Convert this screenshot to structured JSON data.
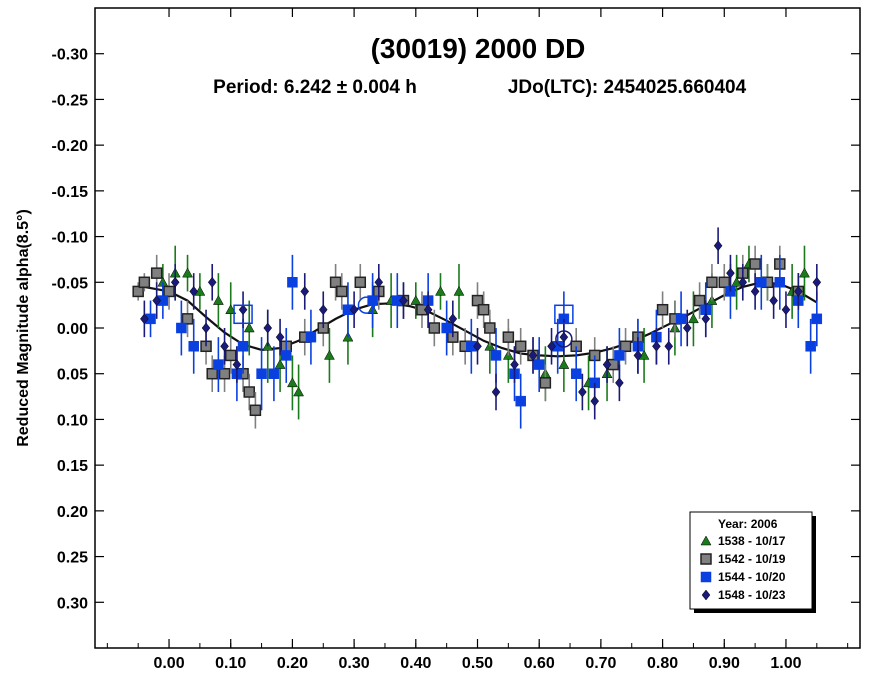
{
  "chart_data": {
    "type": "scatter",
    "title": "(30019) 2000 DD",
    "subtitle_period": "Period: 6.242 ± 0.004 h",
    "subtitle_epoch": "JDo(LTC): 2454025.660404",
    "xlabel": "",
    "ylabel": "Reduced Magnitude alpha(8.5°)",
    "xlim": [
      -0.12,
      1.12
    ],
    "ylim": [
      -0.35,
      0.35
    ],
    "y_inverted": true,
    "x_ticks": [
      "0.00",
      "0.10",
      "0.20",
      "0.30",
      "0.40",
      "0.50",
      "0.60",
      "0.70",
      "0.80",
      "0.90",
      "1.00"
    ],
    "y_ticks": [
      "-0.30",
      "-0.25",
      "-0.20",
      "-0.15",
      "-0.10",
      "-0.05",
      "0.00",
      "0.05",
      "0.10",
      "0.15",
      "0.20",
      "0.25",
      "0.30"
    ],
    "legend_title": "Year: 2006",
    "legend_position": "bottom-right",
    "series": [
      {
        "name": "1538 - 10/17",
        "marker": "triangle",
        "color": "#1b7a1b",
        "points": [
          [
            -0.01,
            -0.05,
            0.02
          ],
          [
            0.01,
            -0.06,
            0.03
          ],
          [
            0.03,
            -0.06,
            0.02
          ],
          [
            0.05,
            -0.04,
            0.02
          ],
          [
            0.08,
            -0.03,
            0.03
          ],
          [
            0.1,
            -0.02,
            0.03
          ],
          [
            0.13,
            0.0,
            0.03
          ],
          [
            0.16,
            0.02,
            0.04
          ],
          [
            0.18,
            0.04,
            0.03
          ],
          [
            0.2,
            0.06,
            0.03
          ],
          [
            0.21,
            0.07,
            0.03
          ],
          [
            0.26,
            0.03,
            0.03
          ],
          [
            0.29,
            0.01,
            0.03
          ],
          [
            0.33,
            -0.02,
            0.03
          ],
          [
            0.36,
            -0.03,
            0.03
          ],
          [
            0.4,
            -0.03,
            0.02
          ],
          [
            0.44,
            -0.04,
            0.02
          ],
          [
            0.47,
            -0.04,
            0.03
          ],
          [
            0.52,
            0.02,
            0.03
          ],
          [
            0.55,
            0.03,
            0.03
          ],
          [
            0.61,
            0.05,
            0.03
          ],
          [
            0.64,
            0.04,
            0.03
          ],
          [
            0.68,
            0.06,
            0.03
          ],
          [
            0.71,
            0.05,
            0.03
          ],
          [
            0.77,
            0.03,
            0.03
          ],
          [
            0.82,
            0.0,
            0.03
          ],
          [
            0.85,
            -0.01,
            0.03
          ],
          [
            0.88,
            -0.03,
            0.03
          ],
          [
            0.92,
            -0.05,
            0.03
          ],
          [
            0.94,
            -0.07,
            0.02
          ],
          [
            0.97,
            -0.05,
            0.02
          ],
          [
            1.01,
            -0.04,
            0.03
          ],
          [
            1.03,
            -0.06,
            0.03
          ]
        ]
      },
      {
        "name": "1542 - 10/19",
        "marker": "square",
        "color": "#808080",
        "points": [
          [
            -0.05,
            -0.04,
            0.01
          ],
          [
            -0.04,
            -0.05,
            0.01
          ],
          [
            -0.02,
            -0.06,
            0.02
          ],
          [
            0.0,
            -0.04,
            0.02
          ],
          [
            0.03,
            -0.01,
            0.02
          ],
          [
            0.06,
            0.02,
            0.02
          ],
          [
            0.07,
            0.05,
            0.02
          ],
          [
            0.09,
            0.05,
            0.02
          ],
          [
            0.1,
            0.03,
            0.02
          ],
          [
            0.12,
            0.05,
            0.02
          ],
          [
            0.13,
            0.07,
            0.02
          ],
          [
            0.14,
            0.09,
            0.02
          ],
          [
            0.19,
            0.02,
            0.02
          ],
          [
            0.22,
            0.01,
            0.02
          ],
          [
            0.25,
            0.0,
            0.02
          ],
          [
            0.27,
            -0.05,
            0.02
          ],
          [
            0.28,
            -0.04,
            0.02
          ],
          [
            0.31,
            -0.05,
            0.02
          ],
          [
            0.34,
            -0.04,
            0.02
          ],
          [
            0.38,
            -0.03,
            0.02
          ],
          [
            0.41,
            -0.02,
            0.02
          ],
          [
            0.43,
            0.0,
            0.02
          ],
          [
            0.46,
            0.01,
            0.02
          ],
          [
            0.48,
            0.02,
            0.02
          ],
          [
            0.5,
            -0.03,
            0.02
          ],
          [
            0.51,
            -0.02,
            0.02
          ],
          [
            0.52,
            0.0,
            0.02
          ],
          [
            0.55,
            0.01,
            0.02
          ],
          [
            0.57,
            0.02,
            0.02
          ],
          [
            0.59,
            0.03,
            0.02
          ],
          [
            0.61,
            0.06,
            0.02
          ],
          [
            0.66,
            0.02,
            0.02
          ],
          [
            0.69,
            0.03,
            0.02
          ],
          [
            0.72,
            0.04,
            0.02
          ],
          [
            0.74,
            0.02,
            0.02
          ],
          [
            0.76,
            0.01,
            0.02
          ],
          [
            0.8,
            -0.02,
            0.02
          ],
          [
            0.82,
            -0.01,
            0.02
          ],
          [
            0.86,
            -0.03,
            0.02
          ],
          [
            0.88,
            -0.05,
            0.02
          ],
          [
            0.9,
            -0.05,
            0.02
          ],
          [
            0.93,
            -0.06,
            0.02
          ],
          [
            0.95,
            -0.07,
            0.02
          ],
          [
            0.97,
            -0.05,
            0.02
          ],
          [
            0.99,
            -0.07,
            0.02
          ],
          [
            1.02,
            -0.04,
            0.02
          ]
        ]
      },
      {
        "name": "1544 - 10/20",
        "marker": "square",
        "color": "#0a3fe0",
        "points": [
          [
            -0.03,
            -0.01,
            0.02
          ],
          [
            -0.01,
            -0.03,
            0.02
          ],
          [
            0.02,
            0.0,
            0.03
          ],
          [
            0.04,
            0.02,
            0.03
          ],
          [
            0.08,
            0.04,
            0.03
          ],
          [
            0.11,
            0.05,
            0.03
          ],
          [
            0.12,
            0.02,
            0.03
          ],
          [
            0.15,
            0.05,
            0.04
          ],
          [
            0.17,
            0.05,
            0.03
          ],
          [
            0.19,
            0.03,
            0.03
          ],
          [
            0.2,
            -0.05,
            0.03
          ],
          [
            0.23,
            0.01,
            0.03
          ],
          [
            0.29,
            -0.02,
            0.03
          ],
          [
            0.33,
            -0.03,
            0.03
          ],
          [
            0.37,
            -0.03,
            0.03
          ],
          [
            0.42,
            -0.03,
            0.03
          ],
          [
            0.45,
            0.0,
            0.03
          ],
          [
            0.49,
            0.02,
            0.03
          ],
          [
            0.53,
            0.03,
            0.03
          ],
          [
            0.56,
            0.05,
            0.03
          ],
          [
            0.57,
            0.08,
            0.03
          ],
          [
            0.6,
            0.04,
            0.03
          ],
          [
            0.63,
            0.02,
            0.03
          ],
          [
            0.64,
            -0.01,
            0.03
          ],
          [
            0.66,
            0.05,
            0.03
          ],
          [
            0.69,
            0.06,
            0.03
          ],
          [
            0.73,
            0.03,
            0.03
          ],
          [
            0.76,
            0.02,
            0.03
          ],
          [
            0.79,
            0.01,
            0.03
          ],
          [
            0.83,
            -0.01,
            0.03
          ],
          [
            0.87,
            -0.02,
            0.03
          ],
          [
            0.91,
            -0.04,
            0.03
          ],
          [
            0.96,
            -0.05,
            0.03
          ],
          [
            0.99,
            -0.05,
            0.03
          ],
          [
            1.02,
            -0.03,
            0.03
          ],
          [
            1.04,
            0.02,
            0.03
          ],
          [
            1.05,
            -0.01,
            0.03
          ]
        ]
      },
      {
        "name": "1548 - 10/23",
        "marker": "diamond",
        "color": "#1a1a7a",
        "points": [
          [
            -0.04,
            -0.01,
            0.02
          ],
          [
            -0.02,
            -0.03,
            0.02
          ],
          [
            0.01,
            -0.05,
            0.02
          ],
          [
            0.04,
            -0.04,
            0.02
          ],
          [
            0.06,
            0.0,
            0.02
          ],
          [
            0.07,
            -0.05,
            0.02
          ],
          [
            0.09,
            0.02,
            0.02
          ],
          [
            0.11,
            0.04,
            0.02
          ],
          [
            0.12,
            -0.02,
            0.02
          ],
          [
            0.16,
            0.0,
            0.02
          ],
          [
            0.18,
            0.01,
            0.02
          ],
          [
            0.22,
            -0.04,
            0.02
          ],
          [
            0.25,
            -0.02,
            0.02
          ],
          [
            0.3,
            -0.02,
            0.02
          ],
          [
            0.34,
            -0.05,
            0.02
          ],
          [
            0.38,
            -0.03,
            0.02
          ],
          [
            0.42,
            -0.02,
            0.02
          ],
          [
            0.46,
            -0.01,
            0.02
          ],
          [
            0.5,
            0.02,
            0.02
          ],
          [
            0.53,
            0.07,
            0.02
          ],
          [
            0.56,
            0.04,
            0.02
          ],
          [
            0.59,
            0.03,
            0.02
          ],
          [
            0.62,
            0.02,
            0.02
          ],
          [
            0.64,
            0.01,
            0.02
          ],
          [
            0.67,
            0.07,
            0.02
          ],
          [
            0.69,
            0.08,
            0.02
          ],
          [
            0.71,
            0.04,
            0.02
          ],
          [
            0.73,
            0.06,
            0.02
          ],
          [
            0.76,
            0.03,
            0.02
          ],
          [
            0.79,
            0.02,
            0.02
          ],
          [
            0.81,
            0.02,
            0.02
          ],
          [
            0.84,
            0.0,
            0.02
          ],
          [
            0.87,
            -0.01,
            0.02
          ],
          [
            0.89,
            -0.09,
            0.02
          ],
          [
            0.91,
            -0.06,
            0.02
          ],
          [
            0.93,
            -0.05,
            0.02
          ],
          [
            0.95,
            -0.04,
            0.02
          ],
          [
            0.98,
            -0.03,
            0.02
          ],
          [
            1.0,
            -0.02,
            0.02
          ],
          [
            1.02,
            -0.04,
            0.02
          ],
          [
            1.05,
            -0.05,
            0.02
          ]
        ]
      }
    ],
    "fit_curve": {
      "x": [
        -0.04,
        0.0,
        0.03,
        0.06,
        0.09,
        0.12,
        0.15,
        0.18,
        0.21,
        0.24,
        0.27,
        0.3,
        0.33,
        0.36,
        0.39,
        0.42,
        0.45,
        0.48,
        0.51,
        0.54,
        0.57,
        0.6,
        0.63,
        0.66,
        0.69,
        0.72,
        0.75,
        0.78,
        0.81,
        0.84,
        0.87,
        0.9,
        0.93,
        0.96,
        0.99,
        1.02,
        1.05
      ],
      "y": [
        -0.045,
        -0.04,
        -0.03,
        -0.012,
        0.005,
        0.018,
        0.024,
        0.022,
        0.014,
        0.002,
        -0.01,
        -0.02,
        -0.026,
        -0.027,
        -0.024,
        -0.018,
        -0.008,
        0.003,
        0.014,
        0.022,
        0.028,
        0.03,
        0.031,
        0.03,
        0.027,
        0.022,
        0.015,
        0.006,
        -0.004,
        -0.014,
        -0.025,
        -0.036,
        -0.045,
        -0.05,
        -0.048,
        -0.04,
        -0.028
      ]
    },
    "reference_markers": [
      {
        "x": 0.12,
        "y": -0.015,
        "shape": "open-square",
        "color": "#0a3fe0"
      },
      {
        "x": 0.32,
        "y": -0.025,
        "shape": "open-circle",
        "color": "#0a3fe0"
      },
      {
        "x": 0.64,
        "y": -0.015,
        "shape": "open-square",
        "color": "#0a3fe0"
      },
      {
        "x": 0.64,
        "y": 0.012,
        "shape": "open-circle",
        "color": "#1a1a7a"
      }
    ]
  }
}
